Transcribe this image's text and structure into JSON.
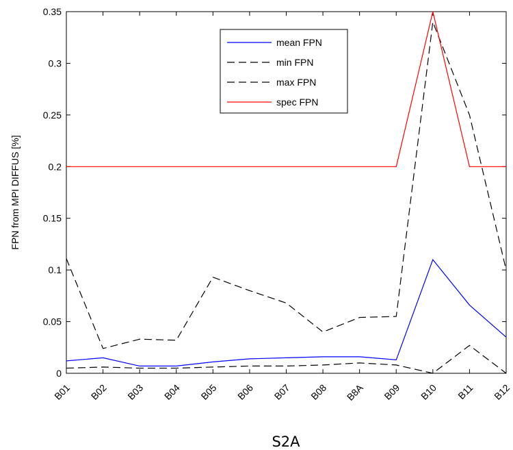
{
  "chart_data": {
    "type": "line",
    "title": "",
    "xlabel": "S2A",
    "ylabel": "FPN from MPI DIFFUS [%]",
    "categories": [
      "B01",
      "B02",
      "B03",
      "B04",
      "B05",
      "B06",
      "B07",
      "B08",
      "B8A",
      "B09",
      "B10",
      "B11",
      "B12"
    ],
    "ylim": [
      0,
      0.35
    ],
    "yticks": [
      0,
      0.05,
      0.1,
      0.15,
      0.2,
      0.25,
      0.3,
      0.35
    ],
    "ytick_labels": [
      "0",
      "0.05",
      "0.1",
      "0.15",
      "0.2",
      "0.25",
      "0.3",
      "0.35"
    ],
    "grid": false,
    "legend_position": "top-center",
    "series": [
      {
        "name": "mean FPN",
        "color": "#0000ff",
        "dash": "solid",
        "values": [
          0.012,
          0.015,
          0.007,
          0.007,
          0.011,
          0.014,
          0.015,
          0.016,
          0.016,
          0.013,
          0.11,
          0.066,
          0.035
        ]
      },
      {
        "name": "min FPN",
        "color": "#000000",
        "dash": "dashed",
        "values": [
          0.005,
          0.006,
          0.005,
          0.005,
          0.006,
          0.007,
          0.007,
          0.008,
          0.01,
          0.008,
          0.0,
          0.027,
          0.0
        ]
      },
      {
        "name": "max FPN",
        "color": "#000000",
        "dash": "dashed",
        "values": [
          0.111,
          0.024,
          0.033,
          0.032,
          0.093,
          0.08,
          0.068,
          0.04,
          0.054,
          0.055,
          0.34,
          0.25,
          0.1
        ]
      },
      {
        "name": "spec FPN",
        "color": "#ff0000",
        "dash": "solid",
        "values": [
          0.2,
          0.2,
          0.2,
          0.2,
          0.2,
          0.2,
          0.2,
          0.2,
          0.2,
          0.2,
          0.35,
          0.2,
          0.2
        ]
      }
    ]
  }
}
